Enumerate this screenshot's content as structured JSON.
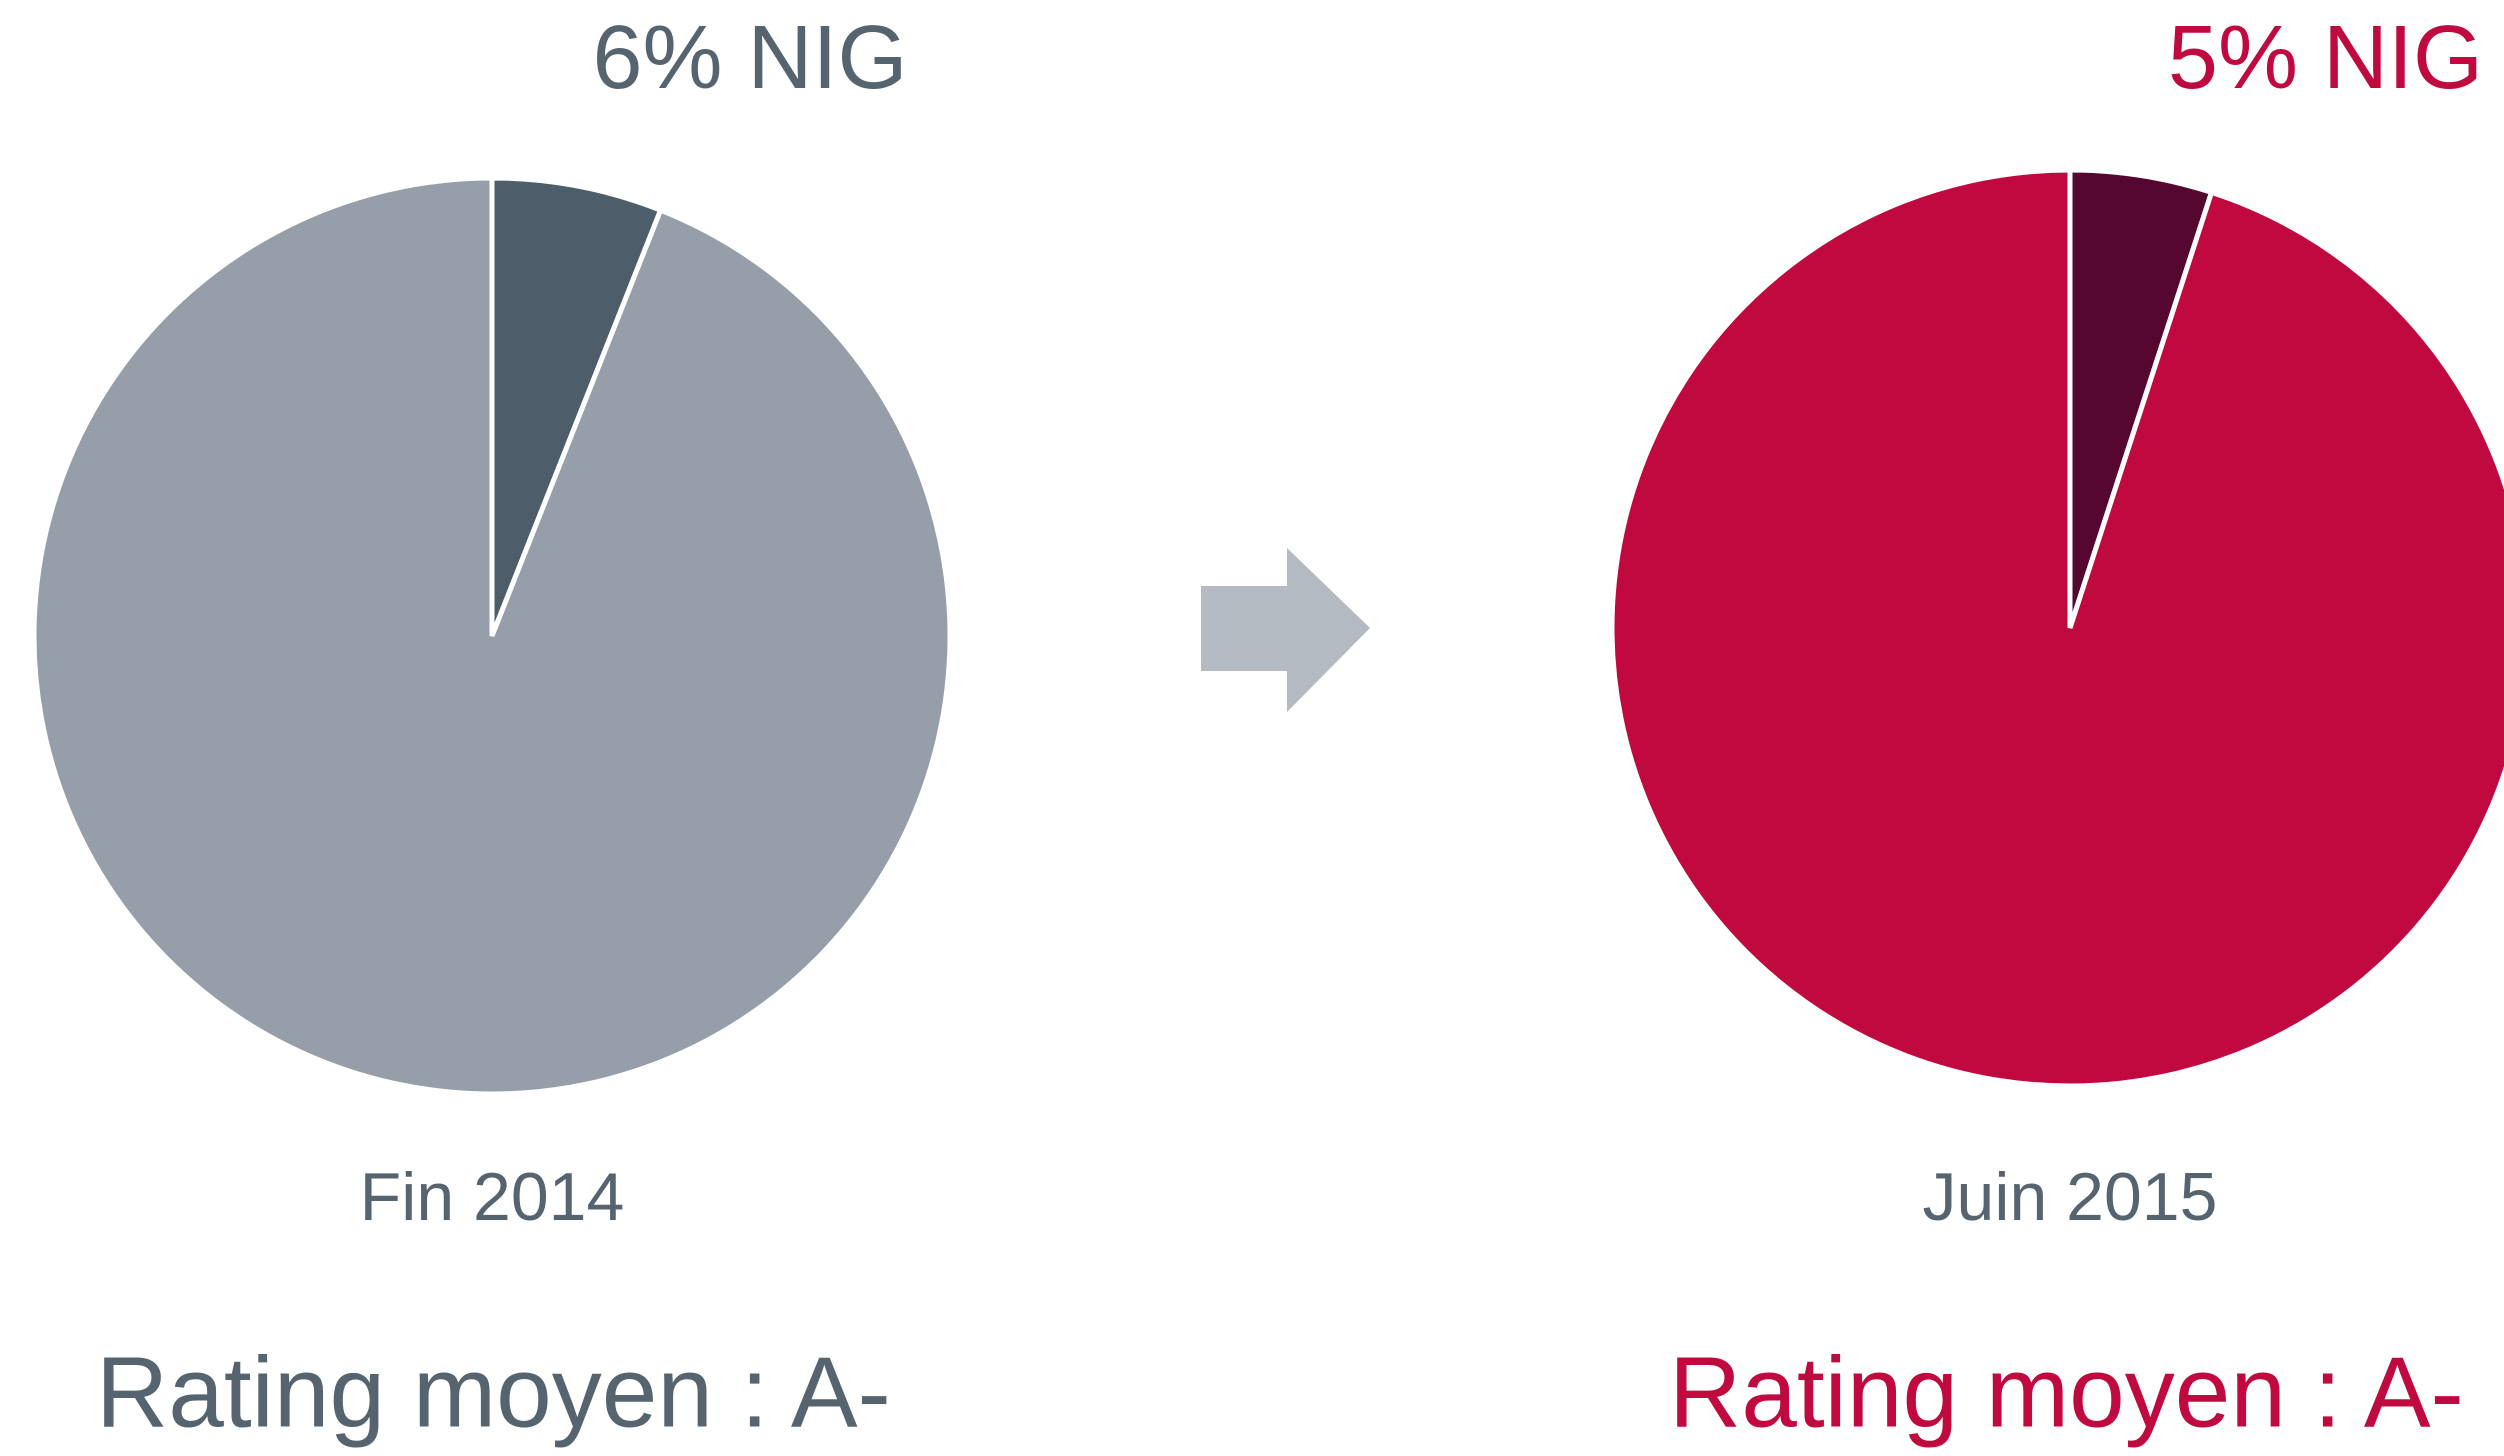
{
  "chart_data": [
    {
      "type": "pie",
      "values": [
        6,
        94
      ],
      "value_labels": [
        "6% NIG",
        null
      ],
      "colors": [
        "#4d5d6a",
        "#969fa9"
      ],
      "text_color": "#56646f",
      "caption": "Fin 2014",
      "annotation": "Rating moyen : A-"
    },
    {
      "type": "pie",
      "values": [
        5,
        95
      ],
      "value_labels": [
        "5% NIG",
        null
      ],
      "colors": [
        "#560730",
        "#c0093f"
      ],
      "text_color": "#c0093f",
      "caption": "Juin 2015",
      "annotation": "Rating moyen : A-"
    }
  ]
}
